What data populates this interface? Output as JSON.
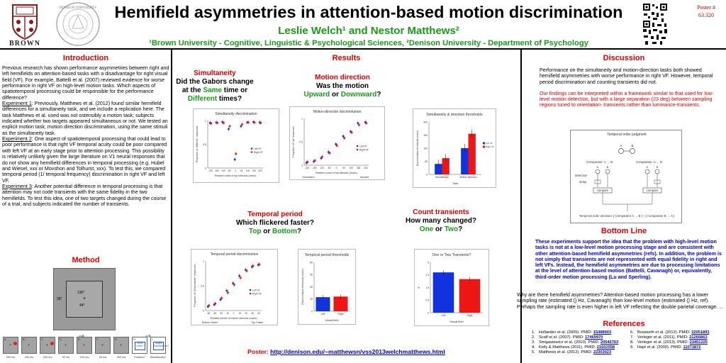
{
  "header": {
    "title": "Hemifield asymmetries in attention-based motion discrimination",
    "authors": "Leslie Welch¹ and Nestor Matthews²",
    "affiliation": "¹Brown University - Cognitive, Linguistic & Psychological Sciences, ²Denison University - Department of Psychology",
    "brown_logo_text": "BROWN",
    "denison_seal_text": "DENISON UNIVERSITY",
    "poster_number_label": "Poster #",
    "poster_number": "63.320"
  },
  "colors": {
    "accent_red": "#e00000",
    "accent_green": "#1a9a1a",
    "series_blue": "#1133dd",
    "series_red": "#ee1515",
    "link_blue": "#0000cc"
  },
  "introduction": {
    "heading": "Introduction",
    "p1": "Previous research has shown performance asymmetries between right and left hemifields on attention-based tasks with a disadvantage for right visual field (VF).  For example, Battelli et al. (2007) reviewed evidence for worse performance in right VF on high-level motion tasks.  Which aspects of spatiotemporal processing could be responsible for the performance difference?",
    "exp1_label": "Experiment 1",
    "exp1_text": ":  Previously, Matthews et al. (2012) found similar hemifield differences for a simultaneity task, and we include a replication here.  The task Matthews et al. used was not ostensibly a motion task; subjects indicated whether two targets appeared simultaneous or not.  We tested an explicit motion task, motion direction discrimination, using the same stimuli as the simultaneity task.",
    "exp2_label": "Experiment 2",
    "exp2_text": ":  One aspect of spatiotemporal processing that could lead to  poor performance is that right VF temporal acuity could be poor compared with left VF at an early stage prior to attention processing.  This possibility is relatively unlikely given the large literature on V1 neural responses that do not show any hemifield differences in temporal processing (e.g. Hubel and Wiesel, xxx or Movshon and Tolhurst, xxx).  To test this, we compared temporal period (1/ temporal frequency) discrimination in right VF and left VF.",
    "exp3_label": "Experiment 3",
    "exp3_text": ":  Another potential difference in temporal processing is that attention may not code transients with the same fidelity in the two hemifields.  To test this idea, one of two targets changed during the course of a trial, and subjects indicated the number of transients."
  },
  "method": {
    "heading": "Method",
    "angle_top": "130°",
    "angle_mid": "44°",
    "angle_left": "28°",
    "frame_letters": [
      "A",
      "B",
      "C",
      "D",
      "E",
      "F",
      "G",
      "H",
      "I"
    ],
    "frame_times": [
      "200 ms",
      "200 ms",
      "200 ms",
      "92 ms",
      "100 ms",
      "25 ms",
      "300 ms",
      "Fixation?",
      "Simultaneity?"
    ],
    "q_box_1": "Which Letter?",
    "q_box_2": "Targets Simultaneous?"
  },
  "results": {
    "heading": "Results",
    "simultaneity": {
      "title": "Simultaneity",
      "q1": "Did the Gabors change",
      "q2_pre": "at the ",
      "q2_same": "Same",
      "q2_post": " time or",
      "q3_diff": "Different",
      "q3_post": " times?"
    },
    "motion": {
      "title": "Motion direction",
      "q1": "Was the motion",
      "q2_up": "Upward",
      "q2_mid": " or ",
      "q2_down": "Downward",
      "q2_post": "?"
    },
    "temporal": {
      "title": "Temporal period",
      "q1": "Which flickered faster?",
      "q2_top": "Top",
      "q2_mid": " or ",
      "q2_bottom": "Bottom",
      "q2_post": "?"
    },
    "transients": {
      "title": "Count transients",
      "q1": "How many changed?",
      "q2_one": "One",
      "q2_mid": " or ",
      "q2_two": "Two",
      "q2_post": "?"
    },
    "poster_link_label": "Poster: ",
    "poster_link": "http://denison.edu/~matthewsn/vss2013welchmatthews.html"
  },
  "chart_data": [
    {
      "type": "scatter",
      "title": "Simultaneity discrimination",
      "xlabel": "Relative onset of top stimulus (msec)",
      "ylabel": "Proportion of \"different\" responses",
      "ylim": [
        0,
        1
      ],
      "legend": [
        "Left VF",
        "Right VF"
      ],
      "x": [
        -200,
        -150,
        -100,
        -50,
        0,
        50,
        100,
        150,
        200
      ],
      "series": [
        {
          "name": "Left VF",
          "values": [
            0.95,
            0.96,
            0.97,
            0.82,
            0.18,
            0.88,
            0.96,
            0.97,
            0.96
          ]
        },
        {
          "name": "Right VF",
          "values": [
            0.94,
            0.95,
            0.95,
            0.88,
            0.3,
            0.92,
            0.96,
            0.96,
            0.95
          ]
        }
      ]
    },
    {
      "type": "scatter",
      "title": "Motion-direction discrimination",
      "xlabel": "Relative onset of top stimulus (msec)",
      "ylabel": "Proportion of \"up\" responses",
      "ylim": [
        0,
        1
      ],
      "legend": [
        "Left VF",
        "Right VF"
      ],
      "x_end_labels": [
        "Downward",
        "Upward"
      ],
      "x": [
        -200,
        -150,
        -100,
        -50,
        0,
        50,
        100,
        150,
        200
      ],
      "series": [
        {
          "name": "Left VF",
          "values": [
            0.05,
            0.08,
            0.15,
            0.28,
            0.45,
            0.62,
            0.72,
            0.9,
            0.92
          ]
        },
        {
          "name": "Right VF",
          "values": [
            0.07,
            0.1,
            0.18,
            0.26,
            0.42,
            0.58,
            0.7,
            0.86,
            0.9
          ]
        }
      ]
    },
    {
      "type": "bar",
      "title": "Simultaneity & direction thresholds",
      "xlabel": "Task",
      "ylabel": "Discrimination threshold (msec)",
      "ylim": [
        0,
        200
      ],
      "categories": [
        "Simultaneity",
        "Motion direction"
      ],
      "legend": [
        "Left VF",
        "Right VF"
      ],
      "series": [
        {
          "name": "Left VF",
          "values": [
            40,
            100
          ]
        },
        {
          "name": "Right VF",
          "values": [
            62,
            155
          ]
        }
      ]
    },
    {
      "type": "scatter",
      "title": "Temporal period discrimination",
      "xlabel": "Relative period of bottom stimulus (msec)",
      "ylabel": "Proportion of \"bottom faster\" responses",
      "ylim": [
        0,
        1
      ],
      "legend": [
        "Left VF",
        "Right VF"
      ],
      "x_end_labels": [
        "Bottom Faster",
        "Top Faster"
      ],
      "x": [
        -60,
        -45,
        -30,
        -15,
        0,
        15,
        30,
        45,
        60
      ],
      "series": [
        {
          "name": "Left VF",
          "values": [
            0.08,
            0.12,
            0.22,
            0.4,
            0.55,
            0.7,
            0.82,
            0.88,
            0.92
          ]
        },
        {
          "name": "Right VF",
          "values": [
            0.1,
            0.14,
            0.25,
            0.36,
            0.52,
            0.66,
            0.8,
            0.9,
            0.93
          ]
        }
      ]
    },
    {
      "type": "bar",
      "title": "Temporal period thresholds",
      "xlabel": "Visual field",
      "ylabel": "Discrimination threshold (msec)",
      "ylim": [
        0,
        80
      ],
      "categories": [
        "Left",
        "Right"
      ],
      "values": [
        23,
        24
      ]
    },
    {
      "type": "bar",
      "title": "One or Two Transients?",
      "xlabel": "Visual field",
      "ylabel": "d'",
      "ylim": [
        0,
        3
      ],
      "categories": [
        "Left",
        "Right"
      ],
      "values": [
        2.4,
        2.0
      ]
    }
  ],
  "discussion": {
    "heading": "Discussion",
    "p1": "Performance on the simultaneity and motion-direction tasks both showed hemifield asymmetries with worse performance in right VF. However, temporal period discrimination and counting transients did not.",
    "p2": "Our findings can be interpreted within a framework similar to that used for low-level motion detection, but with a large separation (23 deg) between sampling regions tuned to orientation- transients rather than luminance-transients.",
    "diagram": {
      "title": "Temporal order judgment",
      "comparator_left": "Comparator:  A → B",
      "comparator_right": "Comparator:  A ← B",
      "detection": "detection",
      "delay": "delay",
      "compare": "compare",
      "footer": "Temporal order decision: [ Comparator A → B ] – [ Comparator B → A ]"
    }
  },
  "bottom_line": {
    "heading": "Bottom Line",
    "p1": "These experiments support the idea that the problem with high-level motion tasks is not at a low-level motion processing stage and are consistent with other attention-based hemifield asymmetries (refs).  In addition, the problem is not simply that transients are not represented with equal fidelity in right and left VFs.  Instead, the hemifield asymmetries are due to processing limitations at the level of attention-based motion (Battelli, Cavanagh) or, equivalently, third-order motion processing (Lu and Sperling).",
    "p2": "Why are there hemifield asymmetries?  Attention-based motion processing has a lower sampling rate (estimated () Hz, Cavanagh) than low-level motion (estimated () Hz, ref).  Perhaps the sampling rate is even higher in left VF reflecting the double parietal coverage.  ..."
  },
  "references": {
    "heading": "References",
    "left": [
      {
        "n": "1.",
        "text": "Hollander et al. (2005). PMID: ",
        "pmid": "15488903"
      },
      {
        "n": "2.",
        "text": "Scalf et al. (2007). PMID: ",
        "pmid": "17469970"
      },
      {
        "n": "3.",
        "text": "Smigasiewicz et al. (2010). PMID: ",
        "pmid": "20546763"
      },
      {
        "n": "4.",
        "text": "Kelly & Matthews  (2011). PMID: ",
        "pmid": "21602558"
      },
      {
        "n": "5.",
        "text": "Matthews et al. (2012). PMID: ",
        "pmid": "22303023"
      }
    ],
    "right": [
      {
        "n": "6.",
        "text": "Bosworth et al. (2012). PMID: ",
        "pmid": "22051893"
      },
      {
        "n": "7.",
        "text": "Verleger et al. (2011). PMID: ",
        "pmid": "21265863"
      },
      {
        "n": "8.",
        "text": "Verleger et al. (2013). PMID: ",
        "pmid": "23451225"
      },
      {
        "n": "9.",
        "text": "Hapt et al. (2000). PMID: ",
        "pmid": "11073872"
      }
    ]
  }
}
